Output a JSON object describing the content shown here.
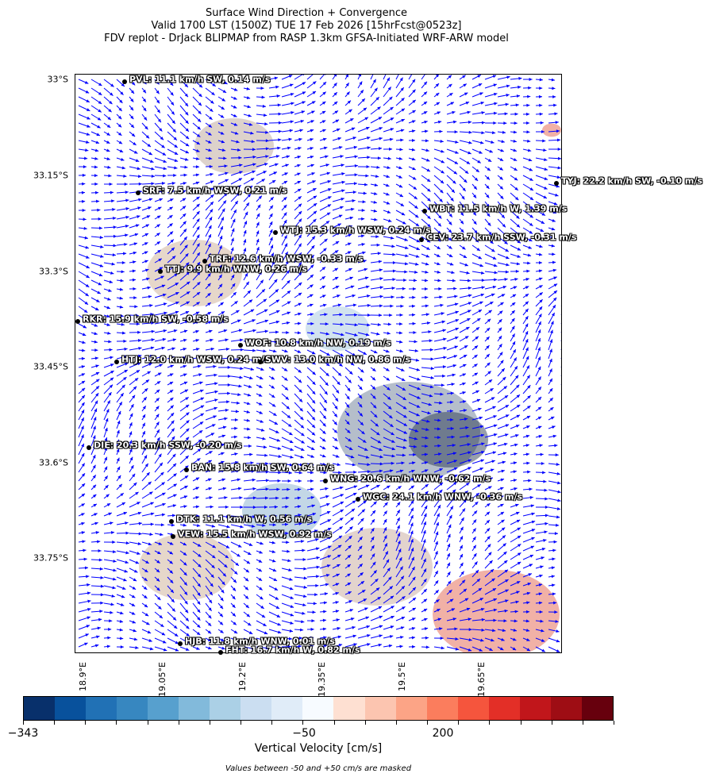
{
  "title": {
    "line1": "Surface Wind Direction + Convergence",
    "line2": "Valid 1700 LST (1500Z) TUE 17 Feb 2026 [15hrFcst@0523z]",
    "line3": "FDV replot - DrJack BLIPMAP from RASP 1.3km GFSA-Initiated WRF-ARW model"
  },
  "map": {
    "arrow_color": "#0000ff",
    "lat_labels": [
      "33°S",
      "33.15°S",
      "33.3°S",
      "33.45°S",
      "33.6°S",
      "33.75°S"
    ],
    "lon_labels": [
      "18.9°E",
      "19.05°E",
      "19.2°E",
      "19.35°E",
      "19.5°E",
      "19.65°E"
    ],
    "stations": [
      {
        "label": "PVL: 11.1 km/h SW, 0.14 m/s"
      },
      {
        "label": "SRF: 7.5 km/h WSW, 0.21 m/s"
      },
      {
        "label": "WTJ: 15.3 km/h WSW, 0.24 m/s"
      },
      {
        "label": "TRF: 12.6 km/h WSW, -0.33 m/s"
      },
      {
        "label": "TTJ: 9.9 km/h WNW, 0.26 m/s"
      },
      {
        "label": "TYJ: 22.2 km/h SW, -0.10 m/s"
      },
      {
        "label": "WBT: 11.5 km/h W, 1.39 m/s"
      },
      {
        "label": "CEV: 23.7 km/h SSW, -0.31 m/s"
      },
      {
        "label": "RKR: 15.9 km/h SW, -0.58 m/s"
      },
      {
        "label": "WOF: 10.8 km/h NW, 0.19 m/s"
      },
      {
        "label": "HTJ: 12.0 km/h WSW, 0.24 m/s"
      },
      {
        "label": "SWV: 13.0 km/h NW, 0.86 m/s"
      },
      {
        "label": "DIE: 20.3 km/h SSW, -0.20 m/s"
      },
      {
        "label": "BAN: 15.8 km/h SW, 0.64 m/s"
      },
      {
        "label": "WNG: 20.6 km/h WNW, -0.62 m/s"
      },
      {
        "label": "WGC: 24.1 km/h WNW, -0.36 m/s"
      },
      {
        "label": "DTK: 11.1 km/h W, 0.56 m/s"
      },
      {
        "label": "VEW: 15.5 km/h WSW, 0.92 m/s"
      },
      {
        "label": "HJB: 11.8 km/h WNW, 0.01 m/s"
      },
      {
        "label": "FHT: 16.7 km/h W, 0.82 m/s"
      }
    ]
  },
  "colorbar": {
    "label": "Vertical Velocity [cm/s]",
    "tick_labels": [
      "−343",
      "−50",
      "200"
    ],
    "note": "Values between -50 and +50 cm/s are masked",
    "colors": [
      "#08306b",
      "#08519c",
      "#2171b5",
      "#3787c0",
      "#57a0ce",
      "#82badb",
      "#abd0e6",
      "#cbdef1",
      "#e0ecf8",
      "#f7fbff",
      "#fee0d2",
      "#fcc5b0",
      "#fca486",
      "#fb7d5d",
      "#f5553d",
      "#e32f27",
      "#c1161b",
      "#9e0d14",
      "#67000d"
    ]
  }
}
